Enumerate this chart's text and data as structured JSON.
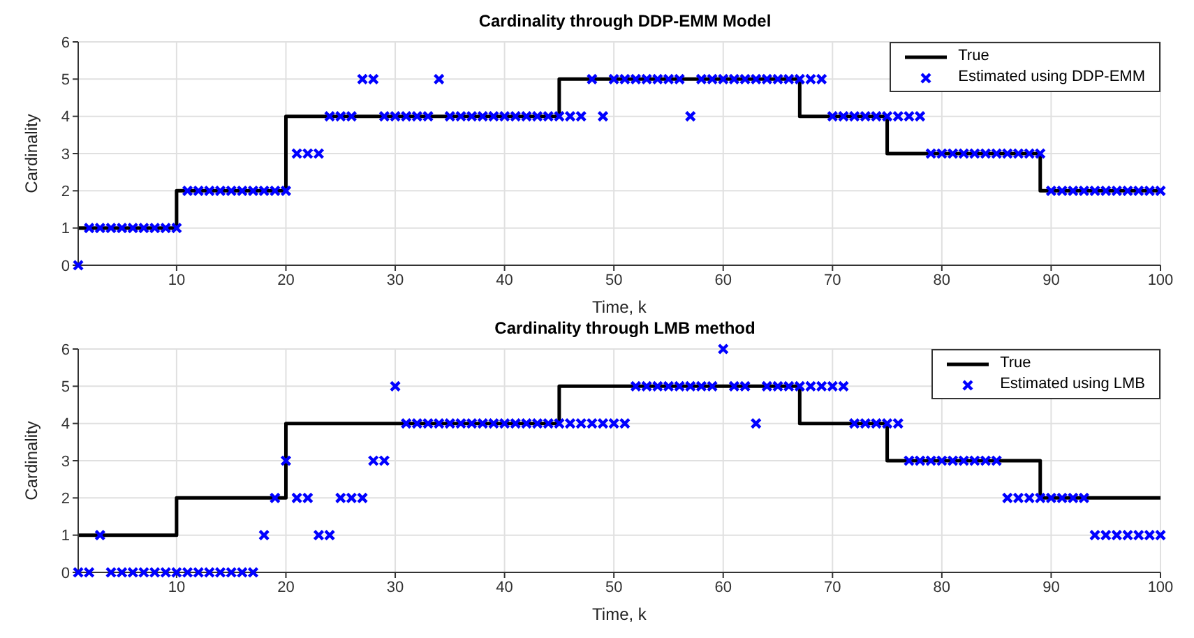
{
  "chart_data": [
    {
      "type": "scatter",
      "title": "Cardinality through DDP-EMM Model",
      "xlabel": "Time, k",
      "ylabel": "Cardinality",
      "xlim": [
        1,
        100
      ],
      "xticks": [
        10,
        20,
        30,
        40,
        50,
        60,
        70,
        80,
        90,
        100
      ],
      "ylim": [
        0,
        6
      ],
      "yticks": [
        0,
        1,
        2,
        3,
        4,
        5,
        6
      ],
      "grid": true,
      "legend": "top right",
      "series": [
        {
          "name": "True",
          "type": "step",
          "color": "#000000",
          "marker": "none",
          "x": [
            1,
            10,
            20,
            45,
            67,
            75,
            89,
            100
          ],
          "values": [
            1,
            2,
            4,
            5,
            4,
            3,
            2,
            2
          ]
        },
        {
          "name": "Estimated using DDP-EMM",
          "type": "scatter",
          "color": "#0000ff",
          "marker": "cross",
          "x": [
            1,
            2,
            3,
            4,
            5,
            6,
            7,
            8,
            9,
            10,
            11,
            12,
            13,
            14,
            15,
            16,
            17,
            18,
            19,
            20,
            21,
            22,
            23,
            24,
            25,
            26,
            27,
            28,
            29,
            30,
            31,
            32,
            33,
            34,
            35,
            36,
            37,
            38,
            39,
            40,
            41,
            42,
            43,
            44,
            45,
            46,
            47,
            48,
            49,
            50,
            51,
            52,
            53,
            54,
            55,
            56,
            57,
            58,
            59,
            60,
            61,
            62,
            63,
            64,
            65,
            66,
            67,
            68,
            69,
            70,
            71,
            72,
            73,
            74,
            75,
            76,
            77,
            78,
            79,
            80,
            81,
            82,
            83,
            84,
            85,
            86,
            87,
            88,
            89,
            90,
            91,
            92,
            93,
            94,
            95,
            96,
            97,
            98,
            99,
            100
          ],
          "values": [
            0,
            1,
            1,
            1,
            1,
            1,
            1,
            1,
            1,
            1,
            2,
            2,
            2,
            2,
            2,
            2,
            2,
            2,
            2,
            2,
            3,
            3,
            3,
            4,
            4,
            4,
            5,
            5,
            4,
            4,
            4,
            4,
            4,
            5,
            4,
            4,
            4,
            4,
            4,
            4,
            4,
            4,
            4,
            4,
            4,
            4,
            4,
            5,
            4,
            5,
            5,
            5,
            5,
            5,
            5,
            5,
            4,
            5,
            5,
            5,
            5,
            5,
            5,
            5,
            5,
            5,
            5,
            5,
            5,
            4,
            4,
            4,
            4,
            4,
            4,
            4,
            4,
            4,
            3,
            3,
            3,
            3,
            3,
            3,
            3,
            3,
            3,
            3,
            3,
            2,
            2,
            2,
            2,
            2,
            2,
            2,
            2,
            2,
            2,
            2
          ]
        }
      ]
    },
    {
      "type": "scatter",
      "title": "Cardinality through LMB method",
      "xlabel": "Time, k",
      "ylabel": "Cardinality",
      "xlim": [
        1,
        100
      ],
      "xticks": [
        10,
        20,
        30,
        40,
        50,
        60,
        70,
        80,
        90,
        100
      ],
      "ylim": [
        0,
        6
      ],
      "yticks": [
        0,
        1,
        2,
        3,
        4,
        5,
        6
      ],
      "grid": true,
      "legend": "top right",
      "series": [
        {
          "name": "True",
          "type": "step",
          "color": "#000000",
          "marker": "none",
          "x": [
            1,
            10,
            20,
            45,
            67,
            75,
            89,
            100
          ],
          "values": [
            1,
            2,
            4,
            5,
            4,
            3,
            2,
            2
          ]
        },
        {
          "name": "Estimated using LMB",
          "type": "scatter",
          "color": "#0000ff",
          "marker": "cross",
          "x": [
            1,
            2,
            3,
            4,
            5,
            6,
            7,
            8,
            9,
            10,
            11,
            12,
            13,
            14,
            15,
            16,
            17,
            18,
            19,
            20,
            21,
            22,
            23,
            24,
            25,
            26,
            27,
            28,
            29,
            30,
            31,
            32,
            33,
            34,
            35,
            36,
            37,
            38,
            39,
            40,
            41,
            42,
            43,
            44,
            45,
            46,
            47,
            48,
            49,
            50,
            51,
            52,
            53,
            54,
            55,
            56,
            57,
            58,
            59,
            60,
            61,
            62,
            63,
            64,
            65,
            66,
            67,
            68,
            69,
            70,
            71,
            72,
            73,
            74,
            75,
            76,
            77,
            78,
            79,
            80,
            81,
            82,
            83,
            84,
            85,
            86,
            87,
            88,
            89,
            90,
            91,
            92,
            93,
            94,
            95,
            96,
            97,
            98,
            99,
            100
          ],
          "values": [
            0,
            0,
            1,
            0,
            0,
            0,
            0,
            0,
            0,
            0,
            0,
            0,
            0,
            0,
            0,
            0,
            0,
            1,
            2,
            3,
            2,
            2,
            1,
            1,
            2,
            2,
            2,
            3,
            3,
            5,
            4,
            4,
            4,
            4,
            4,
            4,
            4,
            4,
            4,
            4,
            4,
            4,
            4,
            4,
            4,
            4,
            4,
            4,
            4,
            4,
            4,
            5,
            5,
            5,
            5,
            5,
            5,
            5,
            5,
            6,
            5,
            5,
            4,
            5,
            5,
            5,
            5,
            5,
            5,
            5,
            5,
            4,
            4,
            4,
            4,
            4,
            3,
            3,
            3,
            3,
            3,
            3,
            3,
            3,
            3,
            2,
            2,
            2,
            2,
            2,
            2,
            2,
            2,
            1,
            1,
            1,
            1,
            1,
            1,
            1
          ]
        }
      ]
    }
  ]
}
